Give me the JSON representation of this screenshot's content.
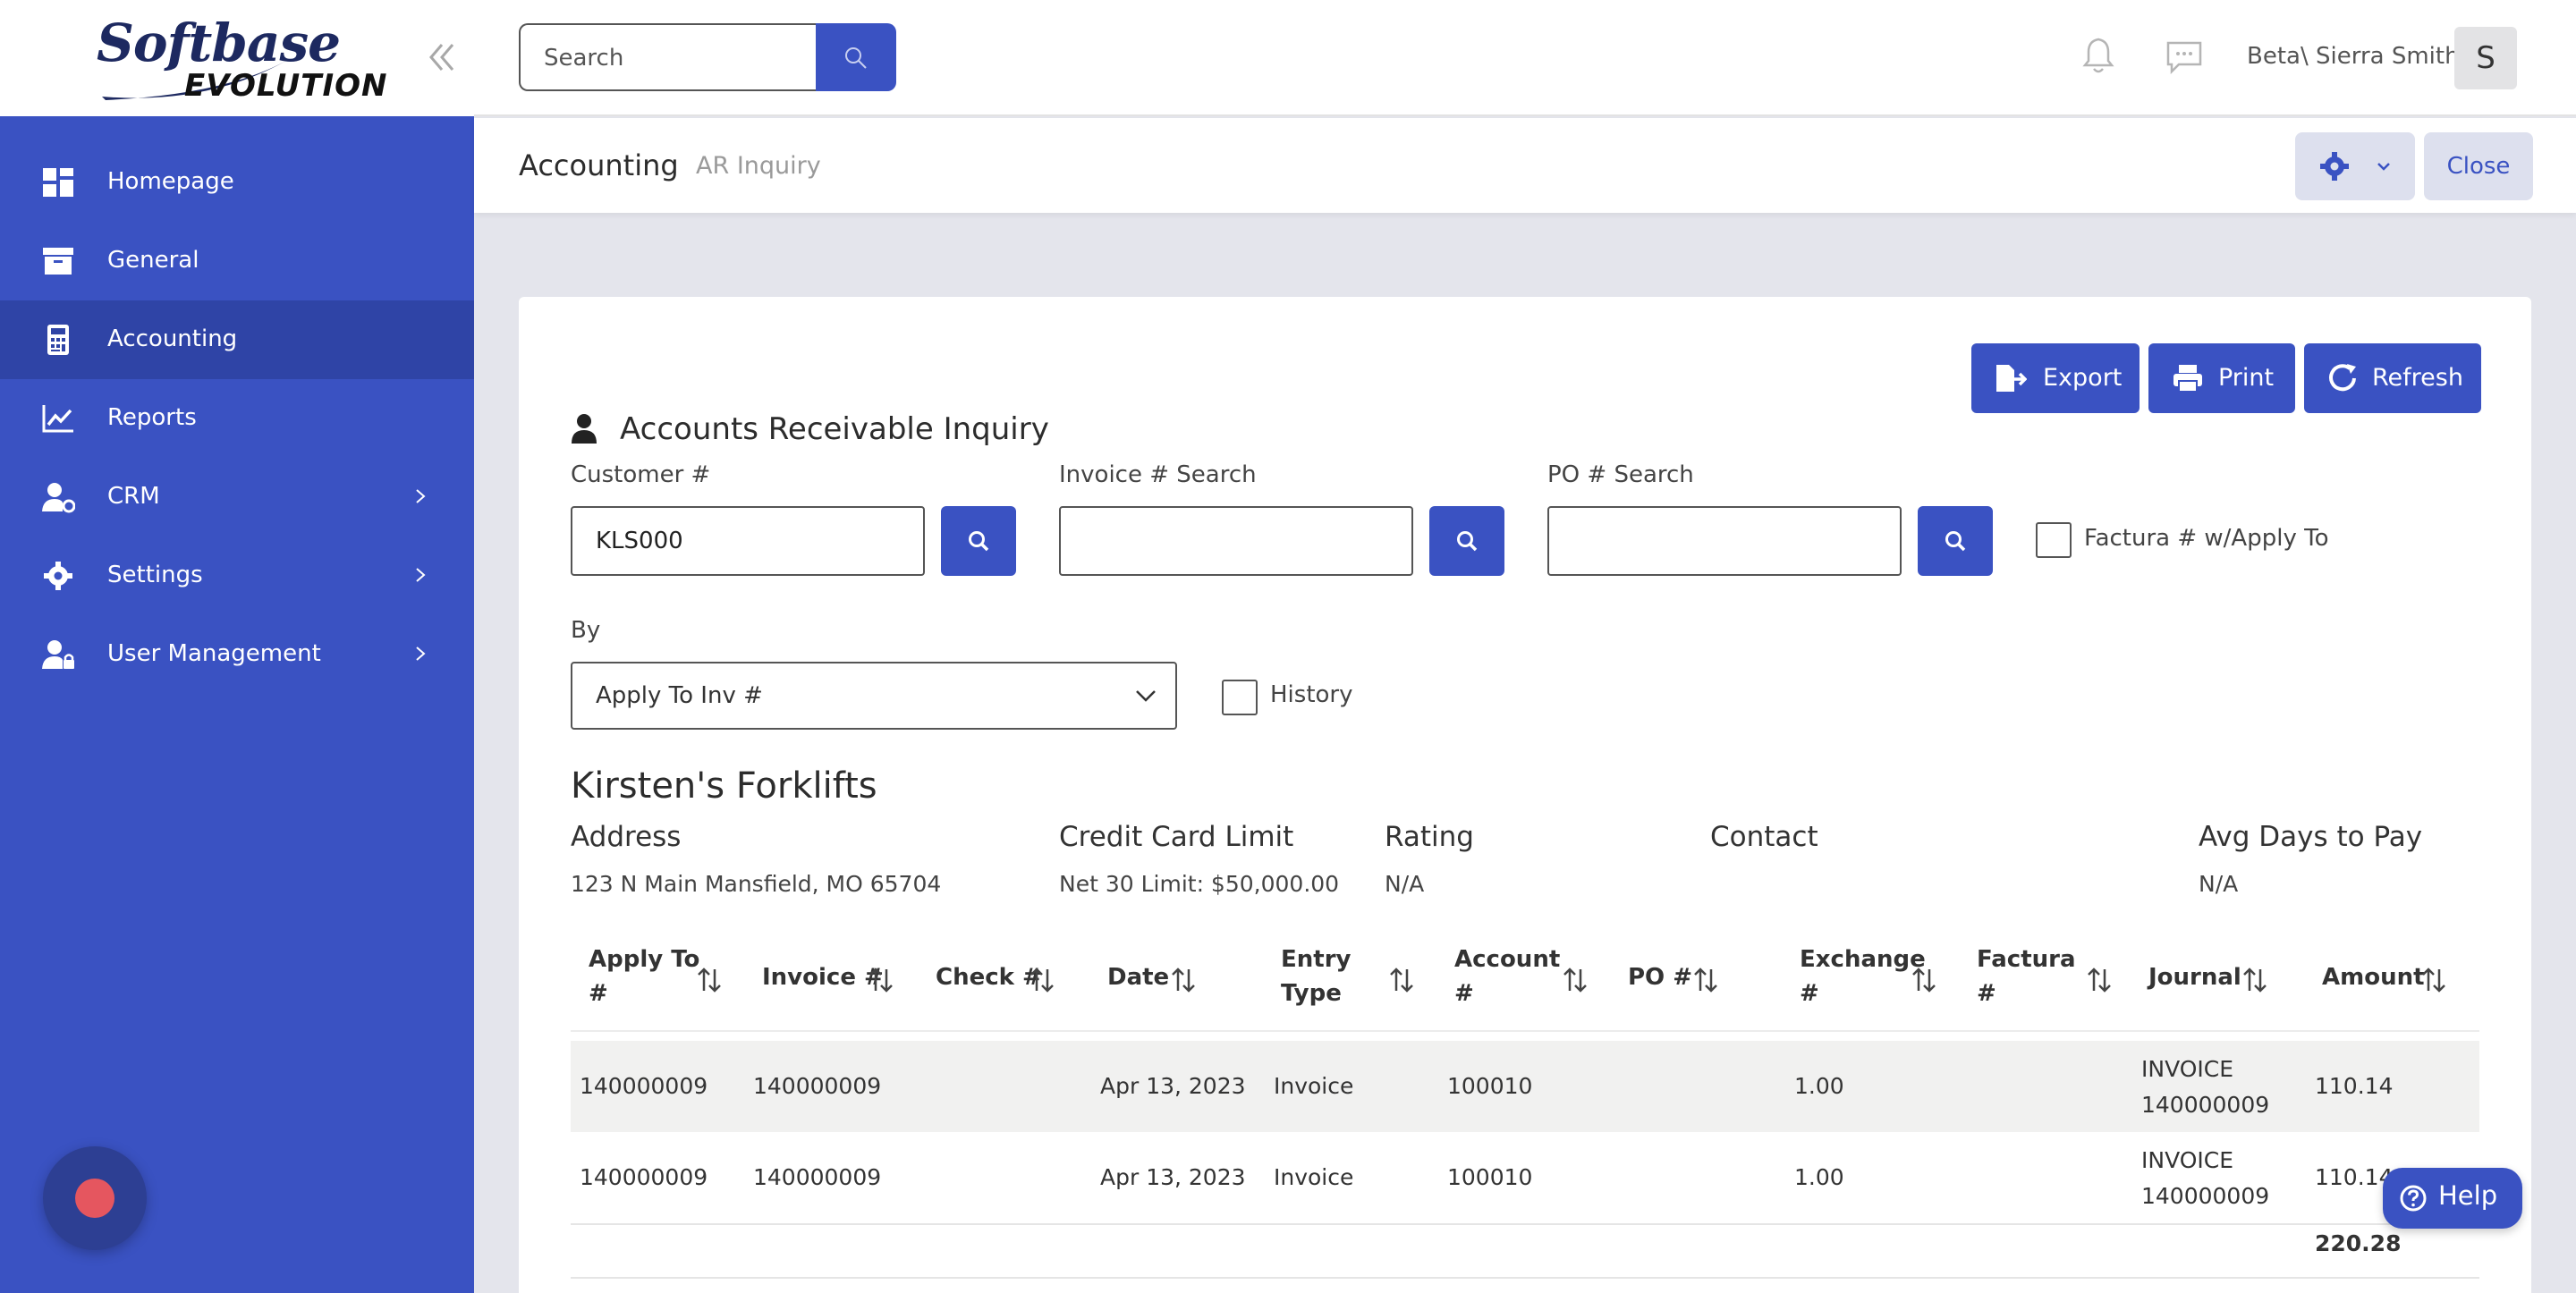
{
  "brand": {
    "line1": "Softbase",
    "line2": "EVOLUTION"
  },
  "sidebar": {
    "items": [
      {
        "label": "Homepage",
        "icon": "dashboard-icon"
      },
      {
        "label": "General",
        "icon": "archive-icon"
      },
      {
        "label": "Accounting",
        "icon": "calculator-icon",
        "active": true
      },
      {
        "label": "Reports",
        "icon": "chart-line-icon"
      },
      {
        "label": "CRM",
        "icon": "user-gear-icon",
        "has_submenu": true
      },
      {
        "label": "Settings",
        "icon": "gear-icon",
        "has_submenu": true
      },
      {
        "label": "User Management",
        "icon": "user-lock-icon",
        "has_submenu": true
      }
    ]
  },
  "topbar": {
    "search_placeholder": "Search",
    "user_name": "Beta\\ Sierra Smith",
    "avatar_initial": "S"
  },
  "breadcrumb": {
    "main": "Accounting",
    "sub": "AR Inquiry"
  },
  "header_actions": {
    "close_label": "Close"
  },
  "actions": {
    "export": "Export",
    "print": "Print",
    "refresh": "Refresh"
  },
  "form": {
    "title": "Accounts Receivable Inquiry",
    "customer_label": "Customer #",
    "customer_value": "KLS000",
    "invoice_label": "Invoice # Search",
    "invoice_value": "",
    "po_label": "PO # Search",
    "po_value": "",
    "factura_label": "Factura # w/Apply To",
    "by_label": "By",
    "by_selected": "Apply To Inv #",
    "history_label": "History"
  },
  "customer": {
    "name": "Kirsten's Forklifts",
    "address_label": "Address",
    "address": "123 N Main Mansfield, MO 65704",
    "credit_label": "Credit Card Limit",
    "credit": "Net 30 Limit: $50,000.00",
    "rating_label": "Rating",
    "rating": "N/A",
    "contact_label": "Contact",
    "contact": "",
    "avgdays_label": "Avg Days to Pay",
    "avgdays": "N/A"
  },
  "table": {
    "columns": [
      {
        "l1": "Apply To",
        "l2": "#"
      },
      {
        "l1": "Invoice #",
        "l2": ""
      },
      {
        "l1": "Check #",
        "l2": ""
      },
      {
        "l1": "Date",
        "l2": ""
      },
      {
        "l1": "Entry",
        "l2": "Type"
      },
      {
        "l1": "Account",
        "l2": "#"
      },
      {
        "l1": "PO #",
        "l2": ""
      },
      {
        "l1": "Exchange",
        "l2": "#"
      },
      {
        "l1": "Factura",
        "l2": "#"
      },
      {
        "l1": "Journal",
        "l2": ""
      },
      {
        "l1": "Amount",
        "l2": ""
      }
    ],
    "rows": [
      {
        "apply_to": "140000009",
        "invoice": "140000009",
        "check": "",
        "date": "Apr 13, 2023",
        "entry_type": "Invoice",
        "account": "100010",
        "po": "",
        "exchange": "1.00",
        "factura": "",
        "journal_l1": "INVOICE",
        "journal_l2": "140000009",
        "amount": "110.14"
      },
      {
        "apply_to": "140000009",
        "invoice": "140000009",
        "check": "",
        "date": "Apr 13, 2023",
        "entry_type": "Invoice",
        "account": "100010",
        "po": "",
        "exchange": "1.00",
        "factura": "",
        "journal_l1": "INVOICE",
        "journal_l2": "140000009",
        "amount": "110.14"
      }
    ],
    "total": "220.28"
  },
  "help": {
    "label": "Help"
  },
  "colors": {
    "primary": "#3a52c2",
    "active_nav": "#2f44a6",
    "record": "#e5565f"
  }
}
